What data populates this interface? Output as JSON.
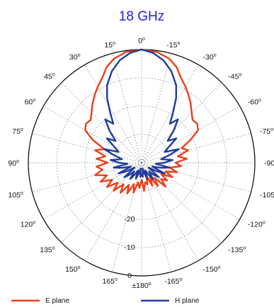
{
  "chart_data": {
    "type": "polar-line",
    "title": "18 GHz",
    "title_color": "#1f1fe0",
    "angle_ticks": [
      {
        "deg": 0,
        "label": "0"
      },
      {
        "deg": 15,
        "label": "-15"
      },
      {
        "deg": 30,
        "label": "-30"
      },
      {
        "deg": 45,
        "label": "-45"
      },
      {
        "deg": 60,
        "label": "-60"
      },
      {
        "deg": 75,
        "label": "-75"
      },
      {
        "deg": 90,
        "label": "-90"
      },
      {
        "deg": 105,
        "label": "-105"
      },
      {
        "deg": 120,
        "label": "-120"
      },
      {
        "deg": 135,
        "label": "-135"
      },
      {
        "deg": 150,
        "label": "-150"
      },
      {
        "deg": 165,
        "label": "-165"
      },
      {
        "deg": 180,
        "label": "±180"
      },
      {
        "deg": 195,
        "label": "165"
      },
      {
        "deg": 210,
        "label": "150"
      },
      {
        "deg": 225,
        "label": "135"
      },
      {
        "deg": 240,
        "label": "120"
      },
      {
        "deg": 255,
        "label": "105"
      },
      {
        "deg": 270,
        "label": "90"
      },
      {
        "deg": 285,
        "label": "75"
      },
      {
        "deg": 300,
        "label": "60"
      },
      {
        "deg": 315,
        "label": "45"
      },
      {
        "deg": 330,
        "label": "30"
      },
      {
        "deg": 345,
        "label": "15"
      }
    ],
    "degree_symbol": "o",
    "radial_axis": {
      "min": -40,
      "max": 0,
      "rings": [
        -30,
        -20,
        -10,
        0
      ],
      "ring_labels": [
        "-20",
        "-10",
        "0"
      ]
    },
    "grid": true,
    "legend_placement": "bottom",
    "series": [
      {
        "name": "E plane",
        "color": "#e8401c",
        "points": [
          [
            0,
            0
          ],
          [
            8,
            -0.5
          ],
          [
            15,
            -2
          ],
          [
            20,
            -4
          ],
          [
            25,
            -7
          ],
          [
            30,
            -9
          ],
          [
            35,
            -11
          ],
          [
            40,
            -13
          ],
          [
            45,
            -15
          ],
          [
            50,
            -16.5
          ],
          [
            55,
            -16
          ],
          [
            60,
            -17
          ],
          [
            65,
            -21
          ],
          [
            70,
            -25
          ],
          [
            75,
            -23
          ],
          [
            80,
            -27
          ],
          [
            85,
            -24
          ],
          [
            90,
            -28
          ],
          [
            95,
            -26
          ],
          [
            100,
            -30
          ],
          [
            105,
            -27
          ],
          [
            110,
            -31
          ],
          [
            115,
            -28
          ],
          [
            120,
            -32
          ],
          [
            125,
            -29
          ],
          [
            130,
            -31
          ],
          [
            135,
            -28
          ],
          [
            140,
            -33
          ],
          [
            145,
            -30
          ],
          [
            150,
            -34
          ],
          [
            155,
            -31
          ],
          [
            160,
            -35
          ],
          [
            165,
            -32
          ],
          [
            170,
            -33
          ],
          [
            175,
            -30
          ],
          [
            180,
            -34
          ],
          [
            185,
            -31
          ],
          [
            190,
            -33
          ],
          [
            195,
            -29
          ],
          [
            200,
            -32
          ],
          [
            205,
            -28
          ],
          [
            210,
            -31
          ],
          [
            215,
            -27
          ],
          [
            220,
            -30
          ],
          [
            225,
            -26
          ],
          [
            230,
            -29
          ],
          [
            235,
            -25
          ],
          [
            240,
            -28
          ],
          [
            245,
            -24
          ],
          [
            250,
            -27
          ],
          [
            255,
            -23
          ],
          [
            260,
            -26
          ],
          [
            265,
            -24
          ],
          [
            270,
            -28
          ],
          [
            275,
            -24
          ],
          [
            280,
            -27
          ],
          [
            285,
            -23
          ],
          [
            290,
            -26
          ],
          [
            295,
            -21
          ],
          [
            300,
            -17
          ],
          [
            305,
            -16
          ],
          [
            310,
            -16.5
          ],
          [
            315,
            -15
          ],
          [
            320,
            -13
          ],
          [
            325,
            -11
          ],
          [
            330,
            -9
          ],
          [
            335,
            -7
          ],
          [
            340,
            -4
          ],
          [
            345,
            -2
          ],
          [
            352,
            -0.5
          ],
          [
            360,
            0
          ]
        ]
      },
      {
        "name": "H plane",
        "color": "#1f3c9c",
        "points": [
          [
            0,
            0
          ],
          [
            6,
            -1
          ],
          [
            12,
            -3
          ],
          [
            18,
            -6
          ],
          [
            24,
            -10
          ],
          [
            28,
            -14
          ],
          [
            32,
            -19
          ],
          [
            36,
            -23
          ],
          [
            40,
            -20
          ],
          [
            45,
            -24
          ],
          [
            50,
            -28
          ],
          [
            55,
            -25
          ],
          [
            60,
            -29
          ],
          [
            65,
            -31
          ],
          [
            70,
            -26
          ],
          [
            75,
            -30
          ],
          [
            80,
            -33
          ],
          [
            85,
            -29
          ],
          [
            90,
            -32
          ],
          [
            95,
            -35
          ],
          [
            100,
            -30
          ],
          [
            105,
            -33
          ],
          [
            110,
            -36
          ],
          [
            115,
            -31
          ],
          [
            120,
            -34
          ],
          [
            125,
            -37
          ],
          [
            130,
            -32
          ],
          [
            135,
            -34
          ],
          [
            140,
            -36
          ],
          [
            145,
            -33
          ],
          [
            150,
            -35
          ],
          [
            155,
            -37
          ],
          [
            160,
            -34
          ],
          [
            165,
            -36
          ],
          [
            170,
            -38
          ],
          [
            175,
            -35
          ],
          [
            180,
            -36
          ],
          [
            185,
            -35
          ],
          [
            190,
            -38
          ],
          [
            195,
            -36
          ],
          [
            200,
            -34
          ],
          [
            205,
            -37
          ],
          [
            210,
            -35
          ],
          [
            215,
            -33
          ],
          [
            220,
            -36
          ],
          [
            225,
            -34
          ],
          [
            230,
            -32
          ],
          [
            235,
            -37
          ],
          [
            240,
            -34
          ],
          [
            245,
            -31
          ],
          [
            250,
            -36
          ],
          [
            255,
            -33
          ],
          [
            260,
            -30
          ],
          [
            265,
            -35
          ],
          [
            270,
            -32
          ],
          [
            275,
            -29
          ],
          [
            280,
            -33
          ],
          [
            285,
            -30
          ],
          [
            290,
            -26
          ],
          [
            295,
            -31
          ],
          [
            300,
            -29
          ],
          [
            305,
            -25
          ],
          [
            310,
            -28
          ],
          [
            315,
            -24
          ],
          [
            320,
            -20
          ],
          [
            324,
            -23
          ],
          [
            328,
            -19
          ],
          [
            332,
            -14
          ],
          [
            336,
            -10
          ],
          [
            342,
            -6
          ],
          [
            348,
            -3
          ],
          [
            354,
            -1
          ],
          [
            360,
            0
          ]
        ]
      }
    ]
  }
}
